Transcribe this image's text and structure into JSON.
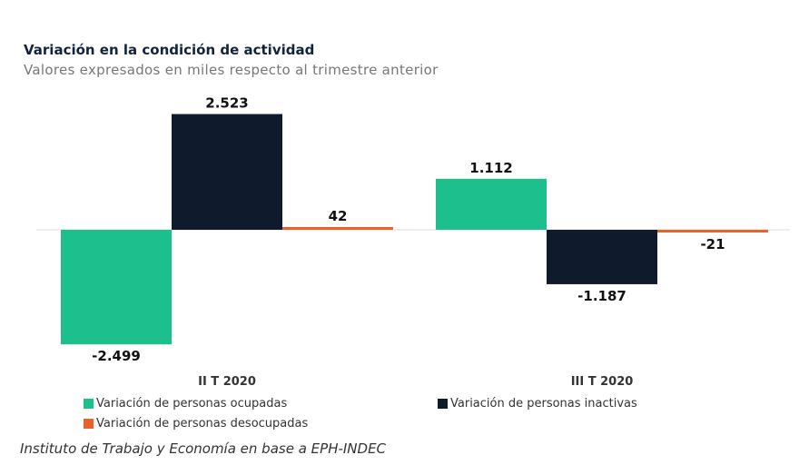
{
  "chart_data": {
    "type": "bar",
    "title": "Variación en la condición de actividad",
    "subtitle": "Valores expresados en miles respecto al trimestre anterior",
    "categories": [
      "II T 2020",
      "III T 2020"
    ],
    "series": [
      {
        "name": "Variación de personas ocupadas",
        "color": "#1dbf8c",
        "values": [
          -2499,
          1112
        ],
        "labels": [
          "-2.499",
          "1.112"
        ]
      },
      {
        "name": "Variación de personas inactivas",
        "color": "#0f1b2d",
        "values": [
          2523,
          -1187
        ],
        "labels": [
          "2.523",
          "-1.187"
        ]
      },
      {
        "name": "Variación de personas desocupadas",
        "color": "#e8622a",
        "values": [
          42,
          -21
        ],
        "labels": [
          "42",
          "-21"
        ]
      }
    ],
    "xlabel": "",
    "ylabel": "",
    "ylim": [
      -2600,
      2600
    ],
    "grid": false,
    "legend": "bottom",
    "source": "Instituto de Trabajo y Economía en base a EPH-INDEC"
  }
}
